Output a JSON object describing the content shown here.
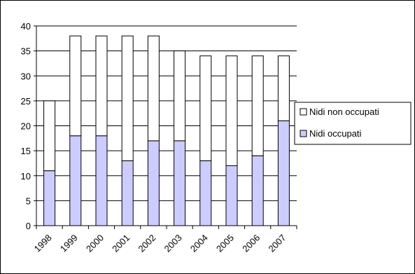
{
  "chart_data": {
    "type": "bar",
    "stacked": true,
    "categories": [
      "1998",
      "1999",
      "2000",
      "2001",
      "2002",
      "2003",
      "2004",
      "2005",
      "2006",
      "2007"
    ],
    "series": [
      {
        "name": "Nidi occupati",
        "values": [
          11,
          18,
          18,
          13,
          17,
          17,
          13,
          12,
          14,
          21
        ],
        "color": "#ccccff"
      },
      {
        "name": "Nidi non occupati",
        "values": [
          14,
          20,
          20,
          25,
          21,
          18,
          21,
          22,
          20,
          13
        ],
        "color": "#ffffff"
      }
    ],
    "ylim": [
      0,
      40
    ],
    "yticks": [
      "0",
      "5",
      "10",
      "15",
      "20",
      "25",
      "30",
      "35",
      "40"
    ],
    "grid": true,
    "legend_position": "right"
  }
}
